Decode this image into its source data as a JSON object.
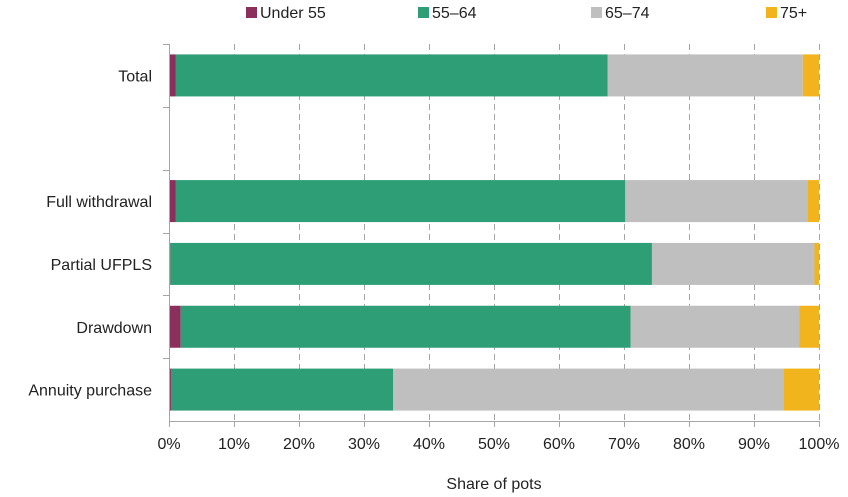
{
  "chart_data": {
    "type": "bar",
    "orientation": "horizontal",
    "stacked": true,
    "title": "",
    "xlabel": "Share of pots",
    "ylabel": "",
    "xlim": [
      0,
      100
    ],
    "x_ticks": [
      0,
      10,
      20,
      30,
      40,
      50,
      60,
      70,
      80,
      90,
      100
    ],
    "x_tick_suffix": "%",
    "grid": "vertical dashed",
    "legend_position": "top",
    "categories": [
      "Total",
      "",
      "Full withdrawal",
      "Partial UFPLS",
      "Drawdown",
      "Annuity purchase"
    ],
    "series": [
      {
        "name": "Under 55",
        "color": "#8b2f5c",
        "values": [
          1.0,
          null,
          1.0,
          0.2,
          1.8,
          0.3
        ]
      },
      {
        "name": "55–64",
        "color": "#2e9e76",
        "values": [
          66.5,
          null,
          69.2,
          74.1,
          69.2,
          34.2
        ]
      },
      {
        "name": "65–74",
        "color": "#bfbfbf",
        "values": [
          30.0,
          null,
          28.0,
          25.0,
          26.0,
          60.0
        ]
      },
      {
        "name": "75+",
        "color": "#f2b41c",
        "values": [
          2.5,
          null,
          1.8,
          0.7,
          3.0,
          5.5
        ]
      }
    ]
  }
}
